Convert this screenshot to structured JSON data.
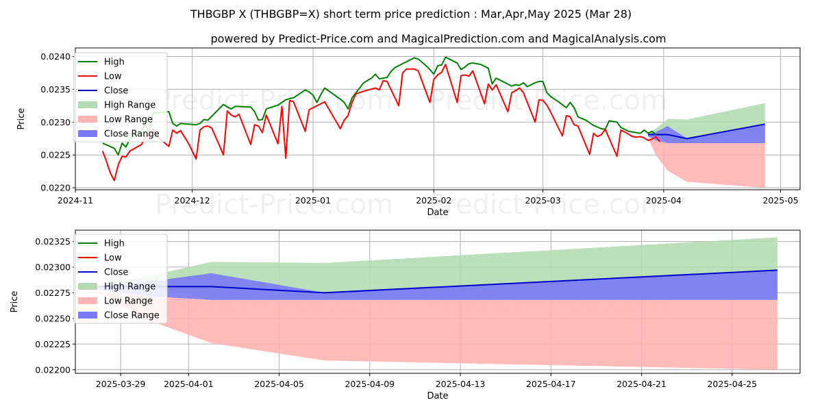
{
  "title": "THBGBP X (THBGBP=X) short term price prediction : Mar,Apr,May 2025 (Mar 28)",
  "subtitle": "powered by Predict-Price.com and MagicalPrediction.com and MagicalAnalysis.com",
  "watermark": "Predict-Price.com",
  "colors": {
    "high": "#008000",
    "low": "#ff0000",
    "close": "#0000cc",
    "high_range": "#b3dbb3",
    "low_range": "#ffb3b3",
    "close_range": "#7a7af7",
    "grid": "#b0b0b0"
  },
  "chart_data": [
    {
      "type": "line",
      "xlabel": "Date",
      "ylabel": "Price",
      "ylim": [
        0.02197,
        0.02413
      ],
      "xlim": [
        "2024-11-01",
        "2025-05-06"
      ],
      "x_ticks": [
        "2024-11",
        "2024-12",
        "2025-01",
        "2025-02",
        "2025-03",
        "2025-04",
        "2025-05"
      ],
      "y_ticks": [
        "0.0220",
        "0.0225",
        "0.0230",
        "0.0235",
        "0.0240"
      ],
      "legend": {
        "placement": "top-left",
        "entries": [
          "High",
          "Low",
          "Close",
          "High Range",
          "Low Range",
          "Close Range"
        ]
      },
      "series": [
        {
          "name": "High",
          "points": [
            [
              "2024-11-08",
              0.02268
            ],
            [
              "2024-11-11",
              0.0226
            ],
            [
              "2024-11-12",
              0.0225
            ],
            [
              "2024-11-13",
              0.02268
            ],
            [
              "2024-11-14",
              0.02262
            ],
            [
              "2024-11-15",
              0.02275
            ],
            [
              "2024-11-18",
              0.02287
            ],
            [
              "2024-11-19",
              0.02297
            ],
            [
              "2024-11-20",
              0.02283
            ],
            [
              "2024-11-21",
              0.02314
            ],
            [
              "2024-11-22",
              0.02314
            ],
            [
              "2024-11-25",
              0.02316
            ],
            [
              "2024-11-26",
              0.02298
            ],
            [
              "2024-11-27",
              0.02294
            ],
            [
              "2024-11-28",
              0.02298
            ],
            [
              "2024-12-02",
              0.02296
            ],
            [
              "2024-12-03",
              0.02298
            ],
            [
              "2024-12-04",
              0.02304
            ],
            [
              "2024-12-05",
              0.02303
            ],
            [
              "2024-12-09",
              0.02327
            ],
            [
              "2024-12-10",
              0.02323
            ],
            [
              "2024-12-11",
              0.0232
            ],
            [
              "2024-12-12",
              0.02324
            ],
            [
              "2024-12-16",
              0.02323
            ],
            [
              "2024-12-17",
              0.02316
            ],
            [
              "2024-12-18",
              0.02303
            ],
            [
              "2024-12-19",
              0.02304
            ],
            [
              "2024-12-20",
              0.0232
            ],
            [
              "2024-12-23",
              0.02326
            ],
            [
              "2024-12-24",
              0.0233
            ],
            [
              "2024-12-25",
              0.02334
            ],
            [
              "2024-12-26",
              0.02336
            ],
            [
              "2024-12-27",
              0.02337
            ],
            [
              "2024-12-30",
              0.02349
            ],
            [
              "2024-12-31",
              0.02346
            ],
            [
              "2025-01-01",
              0.02341
            ],
            [
              "2025-01-02",
              0.0233
            ],
            [
              "2025-01-03",
              0.02342
            ],
            [
              "2025-01-04",
              0.02352
            ],
            [
              "2025-01-08",
              0.02335
            ],
            [
              "2025-01-09",
              0.0233
            ],
            [
              "2025-01-10",
              0.0232
            ],
            [
              "2025-01-11",
              0.02337
            ],
            [
              "2025-01-14",
              0.0236
            ],
            [
              "2025-01-16",
              0.02367
            ],
            [
              "2025-01-17",
              0.02373
            ],
            [
              "2025-01-18",
              0.02366
            ],
            [
              "2025-01-20",
              0.02368
            ],
            [
              "2025-01-21",
              0.02377
            ],
            [
              "2025-01-22",
              0.02383
            ],
            [
              "2025-01-24",
              0.02389
            ],
            [
              "2025-01-26",
              0.02395
            ],
            [
              "2025-01-27",
              0.02398
            ],
            [
              "2025-01-28",
              0.02396
            ],
            [
              "2025-01-30",
              0.02386
            ],
            [
              "2025-01-31",
              0.0238
            ],
            [
              "2025-02-01",
              0.02373
            ],
            [
              "2025-02-02",
              0.02386
            ],
            [
              "2025-02-03",
              0.02387
            ],
            [
              "2025-02-04",
              0.02399
            ],
            [
              "2025-02-05",
              0.02396
            ],
            [
              "2025-02-07",
              0.0239
            ],
            [
              "2025-02-08",
              0.0238
            ],
            [
              "2025-02-09",
              0.02384
            ],
            [
              "2025-02-10",
              0.02389
            ],
            [
              "2025-02-11",
              0.0239
            ],
            [
              "2025-02-13",
              0.02388
            ],
            [
              "2025-02-14",
              0.02385
            ],
            [
              "2025-02-15",
              0.02382
            ],
            [
              "2025-02-16",
              0.02358
            ],
            [
              "2025-02-17",
              0.02367
            ],
            [
              "2025-02-19",
              0.02361
            ],
            [
              "2025-02-21",
              0.02355
            ],
            [
              "2025-02-22",
              0.02357
            ],
            [
              "2025-02-23",
              0.02356
            ],
            [
              "2025-02-24",
              0.0236
            ],
            [
              "2025-02-25",
              0.02354
            ],
            [
              "2025-02-27",
              0.0236
            ],
            [
              "2025-02-28",
              0.02362
            ],
            [
              "2025-03-01",
              0.02362
            ],
            [
              "2025-03-02",
              0.02345
            ],
            [
              "2025-03-03",
              0.02339
            ],
            [
              "2025-03-05",
              0.02331
            ],
            [
              "2025-03-07",
              0.02322
            ],
            [
              "2025-03-08",
              0.0233
            ],
            [
              "2025-03-09",
              0.02322
            ],
            [
              "2025-03-10",
              0.02308
            ],
            [
              "2025-03-12",
              0.02303
            ],
            [
              "2025-03-14",
              0.02295
            ],
            [
              "2025-03-16",
              0.0229
            ],
            [
              "2025-03-17",
              0.02289
            ],
            [
              "2025-03-18",
              0.02302
            ],
            [
              "2025-03-20",
              0.023
            ],
            [
              "2025-03-21",
              0.02292
            ],
            [
              "2025-03-23",
              0.02286
            ],
            [
              "2025-03-25",
              0.02284
            ],
            [
              "2025-03-26",
              0.02283
            ],
            [
              "2025-03-27",
              0.02288
            ],
            [
              "2025-03-28",
              0.02283
            ],
            [
              "2025-03-29",
              0.02286
            ],
            [
              "2025-03-30",
              0.02281
            ]
          ]
        },
        {
          "name": "Low",
          "points": [
            [
              "2024-11-08",
              0.02256
            ],
            [
              "2024-11-09",
              0.0224
            ],
            [
              "2024-11-10",
              0.02222
            ],
            [
              "2024-11-11",
              0.02211
            ],
            [
              "2024-11-12",
              0.02235
            ],
            [
              "2024-11-13",
              0.02248
            ],
            [
              "2024-11-14",
              0.02247
            ],
            [
              "2024-11-15",
              0.02256
            ],
            [
              "2024-11-18",
              0.02266
            ],
            [
              "2024-11-19",
              0.02277
            ],
            [
              "2024-11-20",
              0.0228
            ],
            [
              "2024-11-21",
              0.0229
            ],
            [
              "2024-11-22",
              0.02278
            ],
            [
              "2024-11-25",
              0.02263
            ],
            [
              "2024-11-26",
              0.02288
            ],
            [
              "2024-11-27",
              0.02283
            ],
            [
              "2024-11-28",
              0.02287
            ],
            [
              "2024-11-30",
              0.02268
            ],
            [
              "2024-12-02",
              0.02244
            ],
            [
              "2024-12-03",
              0.02288
            ],
            [
              "2024-12-04",
              0.02293
            ],
            [
              "2024-12-05",
              0.02294
            ],
            [
              "2024-12-06",
              0.02291
            ],
            [
              "2024-12-08",
              0.02264
            ],
            [
              "2024-12-09",
              0.0225
            ],
            [
              "2024-12-10",
              0.02317
            ],
            [
              "2024-12-11",
              0.02311
            ],
            [
              "2024-12-12",
              0.02308
            ],
            [
              "2024-12-13",
              0.02312
            ],
            [
              "2024-12-16",
              0.02266
            ],
            [
              "2024-12-17",
              0.02296
            ],
            [
              "2024-12-18",
              0.02294
            ],
            [
              "2024-12-19",
              0.02284
            ],
            [
              "2024-12-20",
              0.02311
            ],
            [
              "2024-12-23",
              0.02267
            ],
            [
              "2024-12-24",
              0.02324
            ],
            [
              "2024-12-25",
              0.02245
            ],
            [
              "2024-12-26",
              0.02333
            ],
            [
              "2024-12-27",
              0.02331
            ],
            [
              "2024-12-30",
              0.02286
            ],
            [
              "2024-12-31",
              0.02319
            ],
            [
              "2025-01-03",
              0.02328
            ],
            [
              "2025-01-04",
              0.02331
            ],
            [
              "2025-01-08",
              0.0229
            ],
            [
              "2025-01-09",
              0.02303
            ],
            [
              "2025-01-10",
              0.0231
            ],
            [
              "2025-01-11",
              0.0233
            ],
            [
              "2025-01-12",
              0.02343
            ],
            [
              "2025-01-14",
              0.02347
            ],
            [
              "2025-01-17",
              0.02352
            ],
            [
              "2025-01-18",
              0.02349
            ],
            [
              "2025-01-19",
              0.02363
            ],
            [
              "2025-01-20",
              0.02362
            ],
            [
              "2025-01-23",
              0.02325
            ],
            [
              "2025-01-24",
              0.02375
            ],
            [
              "2025-01-25",
              0.02381
            ],
            [
              "2025-01-27",
              0.02381
            ],
            [
              "2025-01-28",
              0.02378
            ],
            [
              "2025-01-31",
              0.0233
            ],
            [
              "2025-02-01",
              0.02365
            ],
            [
              "2025-02-02",
              0.02372
            ],
            [
              "2025-02-03",
              0.02376
            ],
            [
              "2025-02-04",
              0.02388
            ],
            [
              "2025-02-07",
              0.0233
            ],
            [
              "2025-02-08",
              0.02371
            ],
            [
              "2025-02-09",
              0.02372
            ],
            [
              "2025-02-10",
              0.0237
            ],
            [
              "2025-02-11",
              0.02378
            ],
            [
              "2025-02-14",
              0.02328
            ],
            [
              "2025-02-15",
              0.02358
            ],
            [
              "2025-02-16",
              0.02349
            ],
            [
              "2025-02-17",
              0.02357
            ],
            [
              "2025-02-20",
              0.02316
            ],
            [
              "2025-02-21",
              0.02345
            ],
            [
              "2025-02-22",
              0.02348
            ],
            [
              "2025-02-23",
              0.02352
            ],
            [
              "2025-02-24",
              0.02345
            ],
            [
              "2025-02-27",
              0.023
            ],
            [
              "2025-02-28",
              0.02334
            ],
            [
              "2025-03-01",
              0.02333
            ],
            [
              "2025-03-02",
              0.02326
            ],
            [
              "2025-03-03",
              0.02315
            ],
            [
              "2025-03-06",
              0.02279
            ],
            [
              "2025-03-07",
              0.0231
            ],
            [
              "2025-03-08",
              0.02308
            ],
            [
              "2025-03-09",
              0.02296
            ],
            [
              "2025-03-10",
              0.02294
            ],
            [
              "2025-03-13",
              0.02251
            ],
            [
              "2025-03-14",
              0.02283
            ],
            [
              "2025-03-15",
              0.02278
            ],
            [
              "2025-03-16",
              0.02281
            ],
            [
              "2025-03-17",
              0.02289
            ],
            [
              "2025-03-20",
              0.02248
            ],
            [
              "2025-03-21",
              0.02288
            ],
            [
              "2025-03-22",
              0.02285
            ],
            [
              "2025-03-24",
              0.02278
            ],
            [
              "2025-03-25",
              0.02277
            ],
            [
              "2025-03-26",
              0.02278
            ],
            [
              "2025-03-27",
              0.02276
            ],
            [
              "2025-03-28",
              0.02272
            ],
            [
              "2025-03-29",
              0.02274
            ],
            [
              "2025-03-30",
              0.02278
            ],
            [
              "2025-03-31",
              0.0227
            ]
          ]
        }
      ]
    },
    {
      "type": "area",
      "xlabel": "Date",
      "ylabel": "Price",
      "ylim": [
        0.021965,
        0.02336
      ],
      "xlim": [
        "2025-03-27",
        "2025-04-28"
      ],
      "x_ticks": [
        "2025-03-29",
        "2025-04-01",
        "2025-04-05",
        "2025-04-09",
        "2025-04-13",
        "2025-04-17",
        "2025-04-21",
        "2025-04-25"
      ],
      "y_ticks": [
        "0.02200",
        "0.02225",
        "0.02250",
        "0.02275",
        "0.02300",
        "0.02325"
      ],
      "legend": {
        "placement": "top-left",
        "entries": [
          "High",
          "Low",
          "Close",
          "High Range",
          "Low Range",
          "Close Range"
        ]
      },
      "x": [
        "2025-03-28",
        "2025-03-30",
        "2025-04-02",
        "2025-04-07",
        "2025-04-27"
      ],
      "series": [
        {
          "name": "High Range",
          "upper": [
            0.02283,
            0.0229,
            0.02305,
            0.02304,
            0.02329
          ],
          "lower": [
            0.02283,
            0.02283,
            0.02268,
            0.02268,
            0.02268
          ]
        },
        {
          "name": "Low Range",
          "upper": [
            0.02276,
            0.02272,
            0.02268,
            0.02268,
            0.02268
          ],
          "lower": [
            0.02275,
            0.0225,
            0.02226,
            0.02209,
            0.022
          ]
        },
        {
          "name": "Close Range",
          "upper": [
            0.02282,
            0.02285,
            0.02294,
            0.02275,
            0.02297
          ],
          "lower": [
            0.02278,
            0.02272,
            0.02268,
            0.02268,
            0.02268
          ]
        },
        {
          "name": "Close",
          "values": [
            0.02281,
            0.02281,
            0.02281,
            0.02275,
            0.02297
          ]
        }
      ]
    }
  ]
}
